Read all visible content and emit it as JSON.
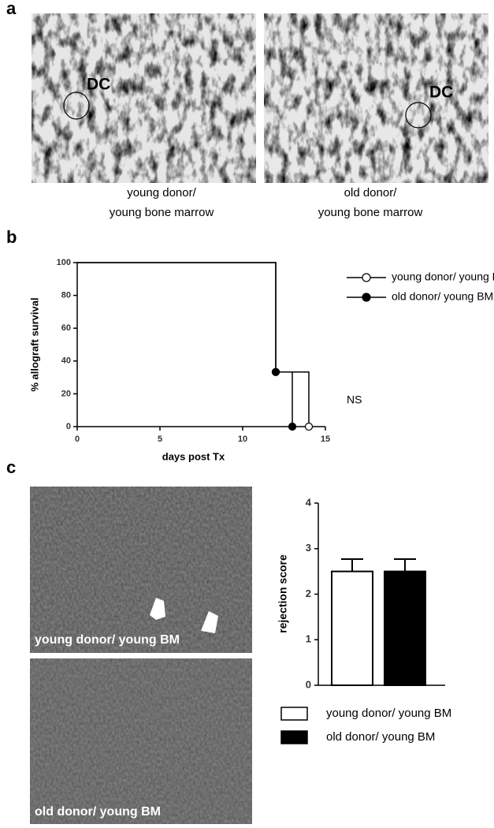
{
  "panel_labels": [
    "a",
    "b",
    "c"
  ],
  "panel_a": {
    "images": [
      {
        "marker": "DC",
        "caption": [
          "young donor/",
          "young bone marrow"
        ]
      },
      {
        "marker": "DC",
        "caption": [
          "old donor/",
          "young bone marrow"
        ]
      }
    ]
  },
  "panel_c_images": [
    "young donor/ young BM",
    "old donor/ young BM"
  ],
  "chart_data": [
    {
      "type": "step",
      "xlabel": "days post Tx",
      "ylabel": "% allograft survival",
      "annotation": "NS",
      "xlim": [
        0,
        15
      ],
      "xticks": [
        0,
        5,
        10,
        15
      ],
      "ylim": [
        0,
        100
      ],
      "yticks": [
        0,
        20,
        40,
        60,
        80,
        100
      ],
      "series": [
        {
          "name": "young donor/ young BM",
          "color": "#000000",
          "marker": "open",
          "x": [
            0,
            12,
            14
          ],
          "values": [
            100,
            33.3,
            0
          ]
        },
        {
          "name": "old donor/ young BM",
          "color": "#000000",
          "marker": "filled",
          "x": [
            0,
            12,
            13
          ],
          "values": [
            100,
            33.3,
            0
          ]
        }
      ]
    },
    {
      "type": "bar",
      "ylabel": "rejection score",
      "ylim": [
        0,
        4
      ],
      "yticks": [
        0,
        1,
        2,
        3,
        4
      ],
      "series": [
        {
          "name": "young donor/ young BM",
          "color": "#ffffff",
          "values": [
            2.5
          ],
          "errors": [
            0.27
          ]
        },
        {
          "name": "old donor/ young BM",
          "color": "#000000",
          "values": [
            2.5
          ],
          "errors": [
            0.27
          ]
        }
      ]
    }
  ]
}
